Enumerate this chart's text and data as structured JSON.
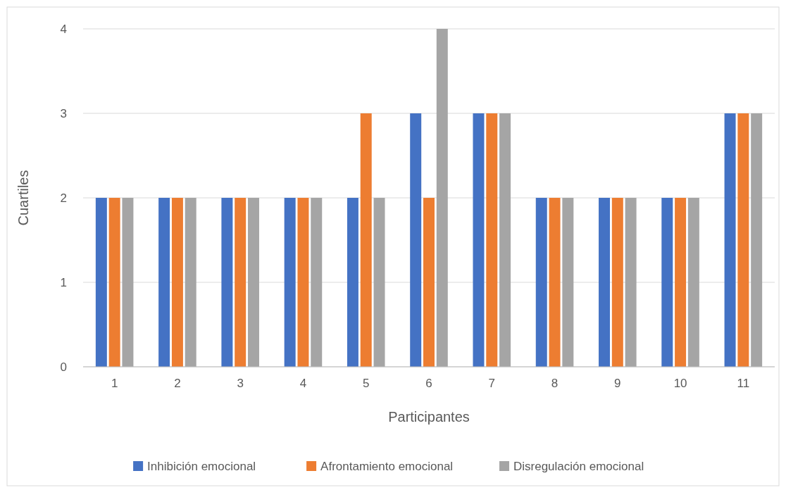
{
  "chart_data": {
    "type": "bar",
    "xlabel": "Participantes",
    "ylabel": "Cuartiles",
    "categories": [
      "1",
      "2",
      "3",
      "4",
      "5",
      "6",
      "7",
      "8",
      "9",
      "10",
      "11"
    ],
    "series": [
      {
        "name": "Inhibición emocional",
        "color": "#4472c4",
        "values": [
          2,
          2,
          2,
          2,
          2,
          3,
          3,
          2,
          2,
          2,
          3
        ]
      },
      {
        "name": "Afrontamiento emocional",
        "color": "#ed7d31",
        "values": [
          2,
          2,
          2,
          2,
          3,
          2,
          3,
          2,
          2,
          2,
          3
        ]
      },
      {
        "name": "Disregulación emocional",
        "color": "#a5a5a5",
        "values": [
          2,
          2,
          2,
          2,
          2,
          4,
          3,
          2,
          2,
          2,
          3
        ]
      }
    ],
    "ylim": [
      0,
      4
    ],
    "yticks": [
      0,
      1,
      2,
      3,
      4
    ],
    "grid": "y",
    "legend": "bottom"
  }
}
